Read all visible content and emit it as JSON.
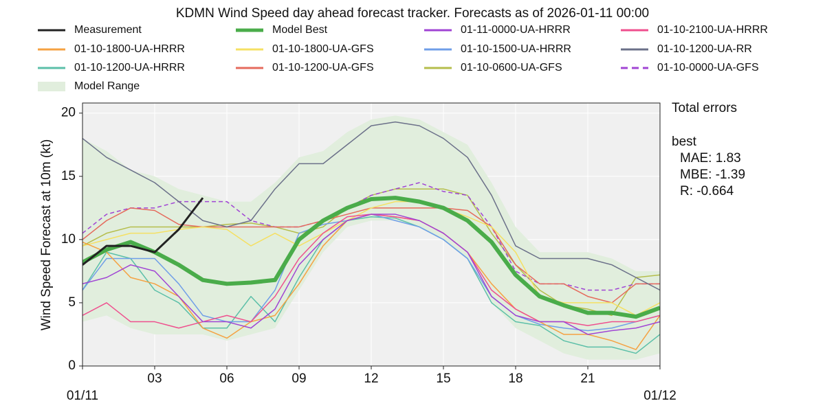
{
  "chart_data": {
    "type": "line",
    "title": "KDMN Wind Speed day ahead forecast tracker. Forecasts as of 2026-01-11 00:00",
    "y_label": "Wind Speed Forecast at 10m (kt)",
    "x": [
      0,
      1,
      2,
      3,
      4,
      5,
      6,
      7,
      8,
      9,
      10,
      11,
      12,
      13,
      14,
      15,
      16,
      17,
      18,
      19,
      20,
      21,
      22,
      23,
      24
    ],
    "xlim": [
      0,
      24
    ],
    "ylim": [
      0,
      20.8
    ],
    "xticks": [
      {
        "value": 3,
        "label": "03"
      },
      {
        "value": 6,
        "label": "06"
      },
      {
        "value": 9,
        "label": "09"
      },
      {
        "value": 12,
        "label": "12"
      },
      {
        "value": 15,
        "label": "15"
      },
      {
        "value": 18,
        "label": "18"
      },
      {
        "value": 21,
        "label": "21"
      }
    ],
    "date_ticks": [
      {
        "value": 0,
        "label": "01/11"
      },
      {
        "value": 24,
        "label": "01/12"
      }
    ],
    "yticks": [
      0,
      5,
      10,
      15,
      20
    ],
    "grid": true,
    "series": [
      {
        "name": "Measurement",
        "color": "#222222",
        "width": 3,
        "values": [
          8,
          9.5,
          9.5,
          9,
          10.8,
          13.3,
          null,
          null,
          null,
          null,
          null,
          null,
          null,
          null,
          null,
          null,
          null,
          null,
          null,
          null,
          null,
          null,
          null,
          null,
          null
        ]
      },
      {
        "name": "Model Best",
        "color": "#4aac4a",
        "width": 6,
        "values": [
          8.2,
          9.2,
          9.8,
          9,
          8,
          6.8,
          6.5,
          6.6,
          6.8,
          10,
          11.5,
          12.5,
          13.2,
          13.3,
          13,
          12.5,
          11.5,
          9.8,
          7.2,
          5.5,
          4.8,
          4.2,
          4.2,
          3.9,
          4.6
        ]
      },
      {
        "name": "01-11-0000-UA-HRRR",
        "color": "#a044d4",
        "width": 1.5,
        "values": [
          6.5,
          7,
          8,
          7.5,
          5.5,
          3.5,
          3.5,
          3,
          4.5,
          8,
          10,
          11.5,
          12,
          12,
          11.5,
          10.5,
          9,
          5.5,
          4,
          3.5,
          3.5,
          2.5,
          2.8,
          3,
          3.5
        ]
      },
      {
        "name": "01-10-2100-UA-HRRR",
        "color": "#ef4f8e",
        "width": 1.5,
        "values": [
          4,
          5,
          3.5,
          3.5,
          3,
          3.5,
          4,
          3.5,
          5.5,
          8.5,
          10.5,
          11.8,
          12,
          11.8,
          11.5,
          10.5,
          9,
          6,
          4.5,
          3.5,
          3.5,
          3.2,
          3.5,
          3.5,
          4
        ]
      },
      {
        "name": "01-10-1800-UA-HRRR",
        "color": "#f5a142",
        "width": 1.5,
        "values": [
          9.8,
          9,
          7,
          6.5,
          5.5,
          3,
          2.2,
          3.5,
          4,
          6.5,
          9.5,
          11.5,
          12,
          11.8,
          11.5,
          10.5,
          9,
          6.5,
          4.5,
          3.5,
          2.5,
          2.5,
          2,
          1.3,
          4
        ]
      },
      {
        "name": "01-10-1800-UA-GFS",
        "color": "#f5e063",
        "width": 1.5,
        "values": [
          9.5,
          10,
          10.5,
          10.5,
          10.8,
          11,
          10.8,
          9.5,
          10.5,
          9.5,
          10.5,
          11.5,
          12.5,
          13,
          13,
          12.5,
          11.8,
          11,
          9,
          5.5,
          5,
          5,
          5,
          4,
          5
        ]
      },
      {
        "name": "01-10-1500-UA-HRRR",
        "color": "#6f9ee8",
        "width": 1.5,
        "values": [
          6,
          8.5,
          8.5,
          8.5,
          6.5,
          4,
          3.5,
          3.5,
          6,
          10.5,
          11.2,
          11.5,
          12,
          11.5,
          11,
          10,
          8.5,
          5.5,
          4,
          3.3,
          3,
          2.8,
          3,
          3.5,
          4
        ]
      },
      {
        "name": "01-10-1200-UA-RR",
        "color": "#6b7089",
        "width": 1.5,
        "values": [
          18,
          16.5,
          15.5,
          14.5,
          13,
          11.5,
          11,
          11.5,
          14,
          16,
          16,
          17.5,
          19,
          19.3,
          19,
          18,
          16.5,
          13.5,
          9.5,
          8.5,
          8.5,
          8.5,
          8,
          7,
          6
        ]
      },
      {
        "name": "01-10-1200-UA-HRRR",
        "color": "#5bbfa8",
        "width": 1.5,
        "values": [
          6,
          9,
          8.5,
          6,
          5,
          3,
          3,
          5.5,
          3.5,
          7,
          10,
          11.5,
          11.8,
          11.7,
          11,
          10,
          8.5,
          5,
          3.5,
          3.2,
          2,
          1.5,
          1.5,
          1,
          2.5
        ]
      },
      {
        "name": "01-10-1200-UA-GFS",
        "color": "#e56a5c",
        "width": 1.5,
        "values": [
          10,
          11.5,
          12.5,
          12.3,
          11.2,
          11,
          11,
          11,
          11,
          11,
          11.5,
          12,
          12.5,
          12.5,
          12.5,
          12.5,
          12.3,
          11,
          8,
          6.5,
          6.5,
          5.5,
          5,
          6.5,
          6.5
        ]
      },
      {
        "name": "01-10-0600-UA-GFS",
        "color": "#b5bd4b",
        "width": 1.5,
        "values": [
          9.5,
          10.5,
          11,
          11,
          11,
          11,
          11.2,
          11.3,
          11,
          10.5,
          11,
          12.5,
          13.5,
          14,
          14,
          14,
          13.5,
          10.5,
          8,
          6,
          4.8,
          4.5,
          4,
          7,
          7.2
        ]
      },
      {
        "name": "01-10-0000-UA-GFS",
        "color": "#a044d4",
        "width": 1.5,
        "dashed": true,
        "values": [
          10.5,
          12,
          12.5,
          12.5,
          13,
          13,
          13,
          11.5,
          11,
          11,
          11.5,
          12.5,
          13.5,
          14,
          14.5,
          13.8,
          13.5,
          11,
          7.5,
          6.5,
          6.5,
          6,
          6,
          6.5,
          6.5
        ]
      }
    ],
    "range": {
      "name": "Model Range",
      "color": "#e1eedd",
      "lower": [
        3.5,
        4,
        3,
        2.5,
        2.5,
        2.5,
        2,
        2.5,
        3,
        6,
        9,
        11,
        11.5,
        11.5,
        11,
        10,
        8.5,
        5,
        3,
        2,
        1,
        0.5,
        0.5,
        0.5,
        1
      ],
      "upper": [
        18,
        17,
        15.5,
        15,
        14,
        13.5,
        13,
        13,
        14.5,
        16.5,
        17,
        18.5,
        19.5,
        19.8,
        19.5,
        18.5,
        17.5,
        14.5,
        11,
        9,
        9,
        9,
        8.5,
        7.5,
        7.5
      ]
    },
    "draw_order": [
      10,
      11,
      9,
      8,
      7,
      6,
      5,
      4,
      3,
      2,
      1,
      0
    ],
    "annotations": [
      "Total errors",
      "best",
      "MAE: 1.83",
      "MBE: -1.39",
      "R: -0.664"
    ]
  }
}
